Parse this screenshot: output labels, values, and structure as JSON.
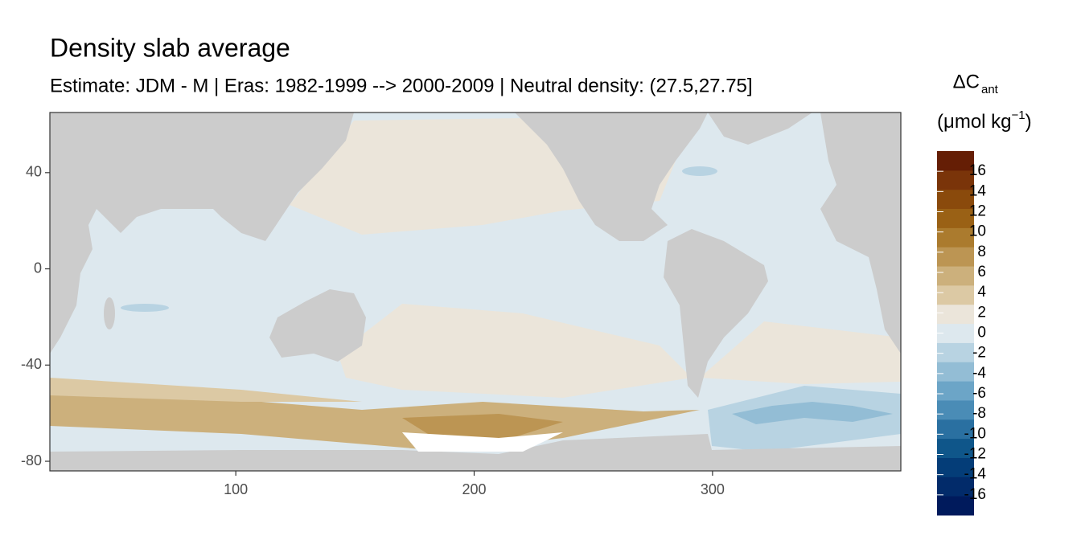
{
  "chart_data": {
    "type": "map",
    "title": "Density slab average",
    "subtitle": "Estimate: JDM - M | Eras: 1982-1999 --> 2000-2009 | Neutral density: (27.5,27.75]",
    "xlim": [
      22,
      379
    ],
    "ylim": [
      -84,
      65
    ],
    "xticks": [
      100,
      200,
      300
    ],
    "yticks": [
      40,
      0,
      -40,
      -80
    ],
    "legend": {
      "title": "ΔC",
      "title_sub": "ant",
      "units": "(μmol kg",
      "units_sup": "−1",
      "units_close": ")",
      "limits": [
        -18,
        18
      ],
      "breaks": [
        16,
        14,
        12,
        10,
        8,
        6,
        4,
        2,
        0,
        -2,
        -4,
        -6,
        -8,
        -10,
        -12,
        -14,
        -16
      ],
      "colors": [
        "#001a5c",
        "#022b6a",
        "#043d78",
        "#0f568a",
        "#2a70a1",
        "#4a8cb6",
        "#6ca5c7",
        "#93bdd5",
        "#b8d3e2",
        "#dde8ee",
        "#ebe5da",
        "#dcc9a4",
        "#ccb07c",
        "#bc9553",
        "#ab7b2e",
        "#9a6115",
        "#8a4a0c",
        "#7a3409",
        "#651e05"
      ]
    }
  }
}
